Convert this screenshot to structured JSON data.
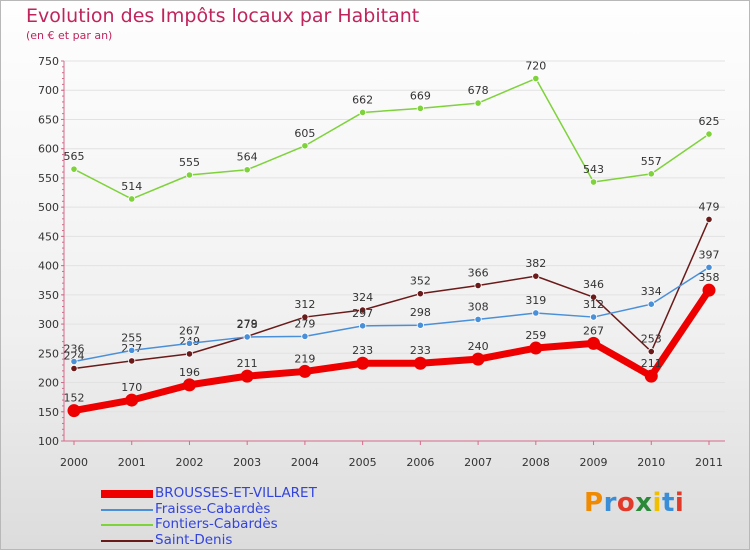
{
  "chart_data": {
    "type": "line",
    "title": "Evolution des Impôts locaux par Habitant",
    "subtitle": "(en € et par an)",
    "x": [
      "2000",
      "2001",
      "2002",
      "2003",
      "2004",
      "2005",
      "2006",
      "2007",
      "2008",
      "2009",
      "2010",
      "2011"
    ],
    "ylim": [
      100,
      750
    ],
    "yticks": [
      100,
      150,
      200,
      250,
      300,
      350,
      400,
      450,
      500,
      550,
      600,
      650,
      700,
      750
    ],
    "grid": "horizontal",
    "legend_position": "bottom-left",
    "series": [
      {
        "name": "Saint-Denis",
        "color": "#6b1a1a",
        "values": [
          224,
          237,
          249,
          279,
          312,
          324,
          352,
          366,
          382,
          346,
          253,
          479
        ]
      },
      {
        "name": "Fontiers-Cabardès",
        "color": "#7ed23a",
        "values": [
          565,
          514,
          555,
          564,
          605,
          662,
          669,
          678,
          720,
          543,
          557,
          625
        ]
      },
      {
        "name": "Fraisse-Cabardès",
        "color": "#4a90d9",
        "values": [
          236,
          255,
          267,
          278,
          279,
          297,
          298,
          308,
          319,
          312,
          334,
          397
        ]
      },
      {
        "name": "BROUSSES-ET-VILLARET",
        "color": "#ee0000",
        "values": [
          152,
          170,
          196,
          211,
          219,
          233,
          233,
          240,
          259,
          267,
          211,
          358
        ]
      }
    ]
  },
  "logo": {
    "text": "Proxiti",
    "colors": [
      "#f08a00",
      "#3a8ed8",
      "#e23a2a",
      "#2a8a3a",
      "#f0c000",
      "#3a8ed8",
      "#e23a2a"
    ]
  }
}
